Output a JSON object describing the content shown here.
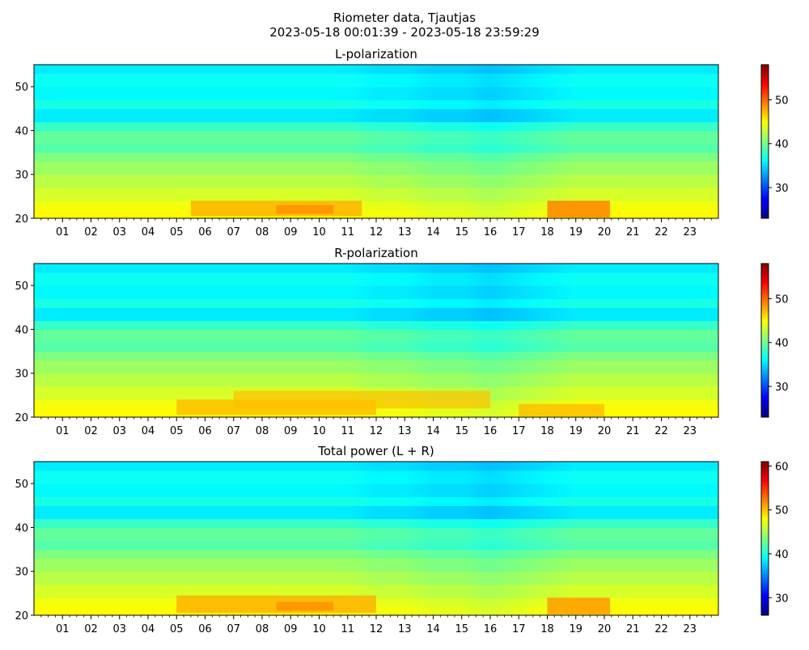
{
  "figure": {
    "title_line1": "Riometer data, Tjautjas",
    "title_line2": "2023-05-18 00:01:39 - 2023-05-18 23:59:29"
  },
  "colormap": {
    "name": "jet",
    "stops": [
      "#00007f",
      "#0000ff",
      "#007fff",
      "#00ffff",
      "#7fff7f",
      "#ffff00",
      "#ff7f00",
      "#ff0000",
      "#7f0000"
    ]
  },
  "chart_data": [
    {
      "type": "heatmap",
      "title": "L-polarization",
      "x_ticks": [
        "01",
        "02",
        "03",
        "04",
        "05",
        "06",
        "07",
        "08",
        "09",
        "10",
        "11",
        "12",
        "13",
        "14",
        "15",
        "16",
        "17",
        "18",
        "19",
        "20",
        "21",
        "22",
        "23"
      ],
      "xlim": [
        0,
        24
      ],
      "ylim": [
        20,
        55
      ],
      "y_ticks": [
        "20",
        "30",
        "40",
        "50"
      ],
      "colorbar": {
        "range": [
          23,
          58
        ],
        "ticks": [
          "30",
          "40",
          "50"
        ]
      },
      "x_hour_centers": [
        0,
        1,
        2,
        3,
        4,
        5,
        6,
        7,
        8,
        9,
        10,
        11,
        12,
        13,
        14,
        15,
        16,
        17,
        18,
        19,
        20,
        21,
        22,
        23,
        24
      ],
      "daily_variation": [
        0,
        0,
        0,
        0,
        0,
        0,
        0,
        0,
        0,
        0,
        0,
        0,
        -0.5,
        -0.5,
        -1,
        -1,
        -1.5,
        -1,
        -0.5,
        0,
        0,
        0,
        0,
        0,
        0
      ],
      "y_bands": [
        {
          "y": [
            20,
            22
          ],
          "value": 45
        },
        {
          "y": [
            22,
            24
          ],
          "value": 44.5
        },
        {
          "y": [
            24,
            27
          ],
          "value": 43.5
        },
        {
          "y": [
            27,
            30
          ],
          "value": 42.5
        },
        {
          "y": [
            30,
            33
          ],
          "value": 41.5
        },
        {
          "y": [
            33,
            35
          ],
          "value": 40.5
        },
        {
          "y": [
            35,
            37
          ],
          "value": 39
        },
        {
          "y": [
            37,
            40
          ],
          "value": 39.5
        },
        {
          "y": [
            40,
            42
          ],
          "value": 38
        },
        {
          "y": [
            42,
            45
          ],
          "value": 35.5
        },
        {
          "y": [
            45,
            47
          ],
          "value": 37
        },
        {
          "y": [
            47,
            50
          ],
          "value": 36
        },
        {
          "y": [
            50,
            53
          ],
          "value": 36.5
        },
        {
          "y": [
            53,
            55
          ],
          "value": 35.5
        }
      ],
      "hotspots": [
        {
          "x": [
            5.5,
            11.5
          ],
          "y": [
            20.5,
            24
          ],
          "value": 48
        },
        {
          "x": [
            8.5,
            10.5
          ],
          "y": [
            21,
            23
          ],
          "value": 49
        },
        {
          "x": [
            18,
            20.2
          ],
          "y": [
            20.2,
            24
          ],
          "value": 50
        }
      ]
    },
    {
      "type": "heatmap",
      "title": "R-polarization",
      "x_ticks": [
        "01",
        "02",
        "03",
        "04",
        "05",
        "06",
        "07",
        "08",
        "09",
        "10",
        "11",
        "12",
        "13",
        "14",
        "15",
        "16",
        "17",
        "18",
        "19",
        "20",
        "21",
        "22",
        "23"
      ],
      "xlim": [
        0,
        24
      ],
      "ylim": [
        20,
        55
      ],
      "y_ticks": [
        "20",
        "30",
        "40",
        "50"
      ],
      "colorbar": {
        "range": [
          23,
          58
        ],
        "ticks": [
          "30",
          "40",
          "50"
        ]
      },
      "x_hour_centers": [
        0,
        1,
        2,
        3,
        4,
        5,
        6,
        7,
        8,
        9,
        10,
        11,
        12,
        13,
        14,
        15,
        16,
        17,
        18,
        19,
        20,
        21,
        22,
        23,
        24
      ],
      "daily_variation": [
        0,
        0,
        0,
        0,
        0,
        0,
        0,
        0,
        0,
        0,
        0,
        0,
        -0.5,
        -0.5,
        -1,
        -1,
        -1.5,
        -1,
        -0.5,
        0,
        0,
        0,
        0,
        0,
        0
      ],
      "y_bands": [
        {
          "y": [
            20,
            22
          ],
          "value": 45
        },
        {
          "y": [
            22,
            24
          ],
          "value": 44.5
        },
        {
          "y": [
            24,
            27
          ],
          "value": 43.5
        },
        {
          "y": [
            27,
            30
          ],
          "value": 42.5
        },
        {
          "y": [
            30,
            33
          ],
          "value": 41.5
        },
        {
          "y": [
            33,
            35
          ],
          "value": 40.5
        },
        {
          "y": [
            35,
            37
          ],
          "value": 39
        },
        {
          "y": [
            37,
            40
          ],
          "value": 39.5
        },
        {
          "y": [
            40,
            42
          ],
          "value": 38
        },
        {
          "y": [
            42,
            45
          ],
          "value": 35.5
        },
        {
          "y": [
            45,
            47
          ],
          "value": 37
        },
        {
          "y": [
            47,
            50
          ],
          "value": 36
        },
        {
          "y": [
            50,
            53
          ],
          "value": 36.5
        },
        {
          "y": [
            53,
            55
          ],
          "value": 35.5
        }
      ],
      "hotspots": [
        {
          "x": [
            5,
            12
          ],
          "y": [
            20.5,
            24
          ],
          "value": 47.5
        },
        {
          "x": [
            7,
            16
          ],
          "y": [
            22,
            26
          ],
          "value": 47
        },
        {
          "x": [
            17,
            20
          ],
          "y": [
            20.2,
            23
          ],
          "value": 47.5
        }
      ]
    },
    {
      "type": "heatmap",
      "title": "Total power (L + R)",
      "x_ticks": [
        "01",
        "02",
        "03",
        "04",
        "05",
        "06",
        "07",
        "08",
        "09",
        "10",
        "11",
        "12",
        "13",
        "14",
        "15",
        "16",
        "17",
        "18",
        "19",
        "20",
        "21",
        "22",
        "23"
      ],
      "xlim": [
        0,
        24
      ],
      "ylim": [
        20,
        55
      ],
      "y_ticks": [
        "20",
        "30",
        "40",
        "50"
      ],
      "colorbar": {
        "range": [
          26,
          61
        ],
        "ticks": [
          "30",
          "40",
          "50",
          "60"
        ]
      },
      "x_hour_centers": [
        0,
        1,
        2,
        3,
        4,
        5,
        6,
        7,
        8,
        9,
        10,
        11,
        12,
        13,
        14,
        15,
        16,
        17,
        18,
        19,
        20,
        21,
        22,
        23,
        24
      ],
      "daily_variation": [
        0,
        0,
        0,
        0,
        0,
        0,
        0,
        0,
        0,
        0,
        0,
        0,
        -0.5,
        -0.5,
        -1,
        -1,
        -1.5,
        -1,
        -0.5,
        0,
        0,
        0,
        0,
        0,
        0
      ],
      "y_bands": [
        {
          "y": [
            20,
            22
          ],
          "value": 48
        },
        {
          "y": [
            22,
            24
          ],
          "value": 47.5
        },
        {
          "y": [
            24,
            27
          ],
          "value": 46.5
        },
        {
          "y": [
            27,
            30
          ],
          "value": 45.5
        },
        {
          "y": [
            30,
            33
          ],
          "value": 44.5
        },
        {
          "y": [
            33,
            35
          ],
          "value": 43.5
        },
        {
          "y": [
            35,
            37
          ],
          "value": 42
        },
        {
          "y": [
            37,
            40
          ],
          "value": 42.5
        },
        {
          "y": [
            40,
            42
          ],
          "value": 41
        },
        {
          "y": [
            42,
            45
          ],
          "value": 38.5
        },
        {
          "y": [
            45,
            47
          ],
          "value": 40
        },
        {
          "y": [
            47,
            50
          ],
          "value": 39
        },
        {
          "y": [
            50,
            53
          ],
          "value": 39.5
        },
        {
          "y": [
            53,
            55
          ],
          "value": 38.5
        }
      ],
      "hotspots": [
        {
          "x": [
            5,
            12
          ],
          "y": [
            20.5,
            24.5
          ],
          "value": 51
        },
        {
          "x": [
            8.5,
            10.5
          ],
          "y": [
            21,
            23
          ],
          "value": 52
        },
        {
          "x": [
            18,
            20.2
          ],
          "y": [
            20.2,
            24
          ],
          "value": 52
        }
      ]
    }
  ]
}
